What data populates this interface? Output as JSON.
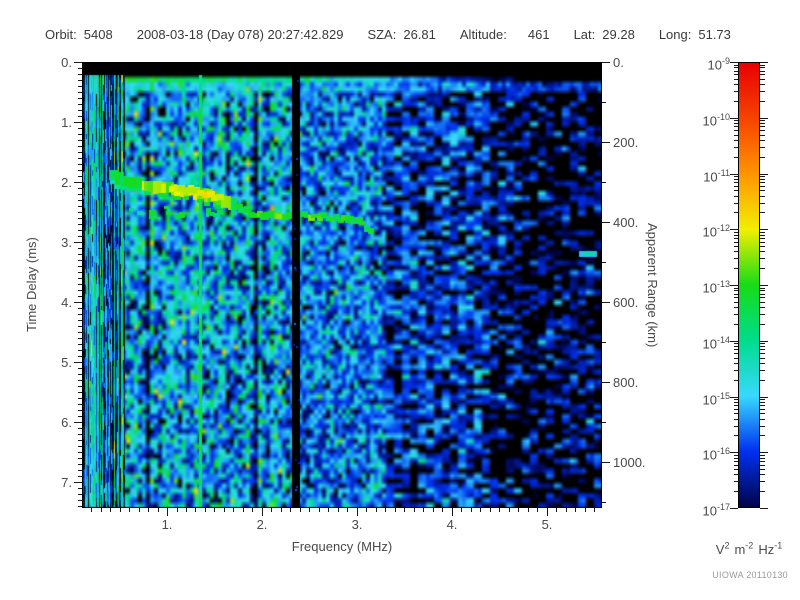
{
  "header": {
    "fields": [
      {
        "label": "Orbit:",
        "value": "5408"
      },
      {
        "label": "",
        "value": "2008-03-18 (Day 078) 20:27:42.829"
      },
      {
        "label": "SZA:",
        "value": "26.81"
      },
      {
        "label": "Altitude:",
        "value": "461",
        "wide_gap": true
      },
      {
        "label": "Lat:",
        "value": "29.28"
      },
      {
        "label": "Long:",
        "value": "51.73"
      }
    ]
  },
  "footer": {
    "credit": "UIOWA 20110130"
  },
  "chart_data": {
    "type": "heatmap",
    "title": "",
    "xlabel": "Frequency (MHz)",
    "ylabel_left": "Time Delay (ms)",
    "ylabel_right": "Apparent Range (km)",
    "x_range_mhz": [
      0.105,
      5.58
    ],
    "x_major_ticks": [
      {
        "v": 1,
        "label": "1."
      },
      {
        "v": 2,
        "label": "2."
      },
      {
        "v": 3,
        "label": "3."
      },
      {
        "v": 4,
        "label": "4."
      },
      {
        "v": 5,
        "label": "5."
      }
    ],
    "x_minor_step_mhz": 0.1,
    "y_range_ms": [
      0,
      7.433
    ],
    "y_major_ticks": [
      {
        "v": 0,
        "label": "0."
      },
      {
        "v": 1,
        "label": "1."
      },
      {
        "v": 2,
        "label": "2."
      },
      {
        "v": 3,
        "label": "3."
      },
      {
        "v": 4,
        "label": "4."
      },
      {
        "v": 5,
        "label": "5."
      },
      {
        "v": 6,
        "label": "6."
      },
      {
        "v": 7,
        "label": "7."
      }
    ],
    "y_minor_step_ms": 0.1,
    "right_axis_km_per_ms": 150,
    "right_major_ticks": [
      {
        "v": 0,
        "label": "0."
      },
      {
        "v": 200,
        "label": "200."
      },
      {
        "v": 400,
        "label": "400."
      },
      {
        "v": 600,
        "label": "600."
      },
      {
        "v": 800,
        "label": "800."
      },
      {
        "v": 1000,
        "label": "1000."
      }
    ],
    "right_minor_step_km": 100,
    "colorbar": {
      "scale": "log",
      "range_exponents": [
        -9,
        -17
      ],
      "tick_labels": [
        {
          "base": "10",
          "exp": "-9"
        },
        {
          "base": "10",
          "exp": "-10"
        },
        {
          "base": "10",
          "exp": "-11"
        },
        {
          "base": "10",
          "exp": "-12"
        },
        {
          "base": "10",
          "exp": "-13"
        },
        {
          "base": "10",
          "exp": "-14"
        },
        {
          "base": "10",
          "exp": "-15"
        },
        {
          "base": "10",
          "exp": "-16"
        },
        {
          "base": "10",
          "exp": "-17"
        }
      ],
      "unit_parts": [
        {
          "base": "V",
          "exp": "2"
        },
        {
          "base": "m",
          "exp": "-2"
        },
        {
          "base": "Hz",
          "exp": "-1"
        }
      ],
      "stops": [
        {
          "exp": -9,
          "color": "#e80000"
        },
        {
          "exp": -10,
          "color": "#f64300"
        },
        {
          "exp": -11,
          "color": "#ff9500"
        },
        {
          "exp": -12,
          "color": "#f2ef00"
        },
        {
          "exp": -13,
          "color": "#17dc17"
        },
        {
          "exp": -14,
          "color": "#00dc8c"
        },
        {
          "exp": -15,
          "color": "#38d9ff"
        },
        {
          "exp": -16,
          "color": "#0030ee"
        },
        {
          "exp": -17,
          "color": "#000447"
        }
      ]
    },
    "features": {
      "seed": 20110130,
      "top_black_ms": 0.22,
      "surface_line_ms": 0.28,
      "black_stripe_mhz": 2.36,
      "bright_stripe_mhz": 1.35,
      "echo_trace": [
        [
          0.45,
          1.92,
          -13.6
        ],
        [
          0.55,
          1.98,
          -13.2
        ],
        [
          0.66,
          2.02,
          -12.95
        ],
        [
          0.8,
          2.07,
          -12.75
        ],
        [
          0.95,
          2.1,
          -12.55
        ],
        [
          1.1,
          2.13,
          -12.35
        ],
        [
          1.25,
          2.17,
          -12.2
        ],
        [
          1.42,
          2.22,
          -12.45
        ],
        [
          1.55,
          2.28,
          -12.7
        ],
        [
          1.68,
          2.38,
          -12.9
        ],
        [
          1.8,
          2.47,
          -13.0
        ],
        [
          1.95,
          2.53,
          -13.05
        ],
        [
          2.2,
          2.55,
          -13.1
        ],
        [
          2.6,
          2.57,
          -13.1
        ],
        [
          2.9,
          2.61,
          -13.2
        ],
        [
          3.05,
          2.64,
          -13.15
        ],
        [
          3.12,
          2.77,
          -13.3
        ],
        [
          3.17,
          2.9,
          -13.5
        ]
      ],
      "yellow_core_mhz": [
        1.05,
        1.58
      ],
      "right_dash": {
        "f": 5.42,
        "t": 3.2,
        "v": -14.2
      },
      "noise": {
        "left_mean": -15.35,
        "left_sd": 1.05,
        "mid_mean": -15.65,
        "mid_sd": 0.8,
        "right_mean": -16.0,
        "right_sd": 0.7,
        "far_right_mean": -16.45,
        "far_right_sd": 0.6,
        "right_black_frac": 0.45
      }
    }
  }
}
